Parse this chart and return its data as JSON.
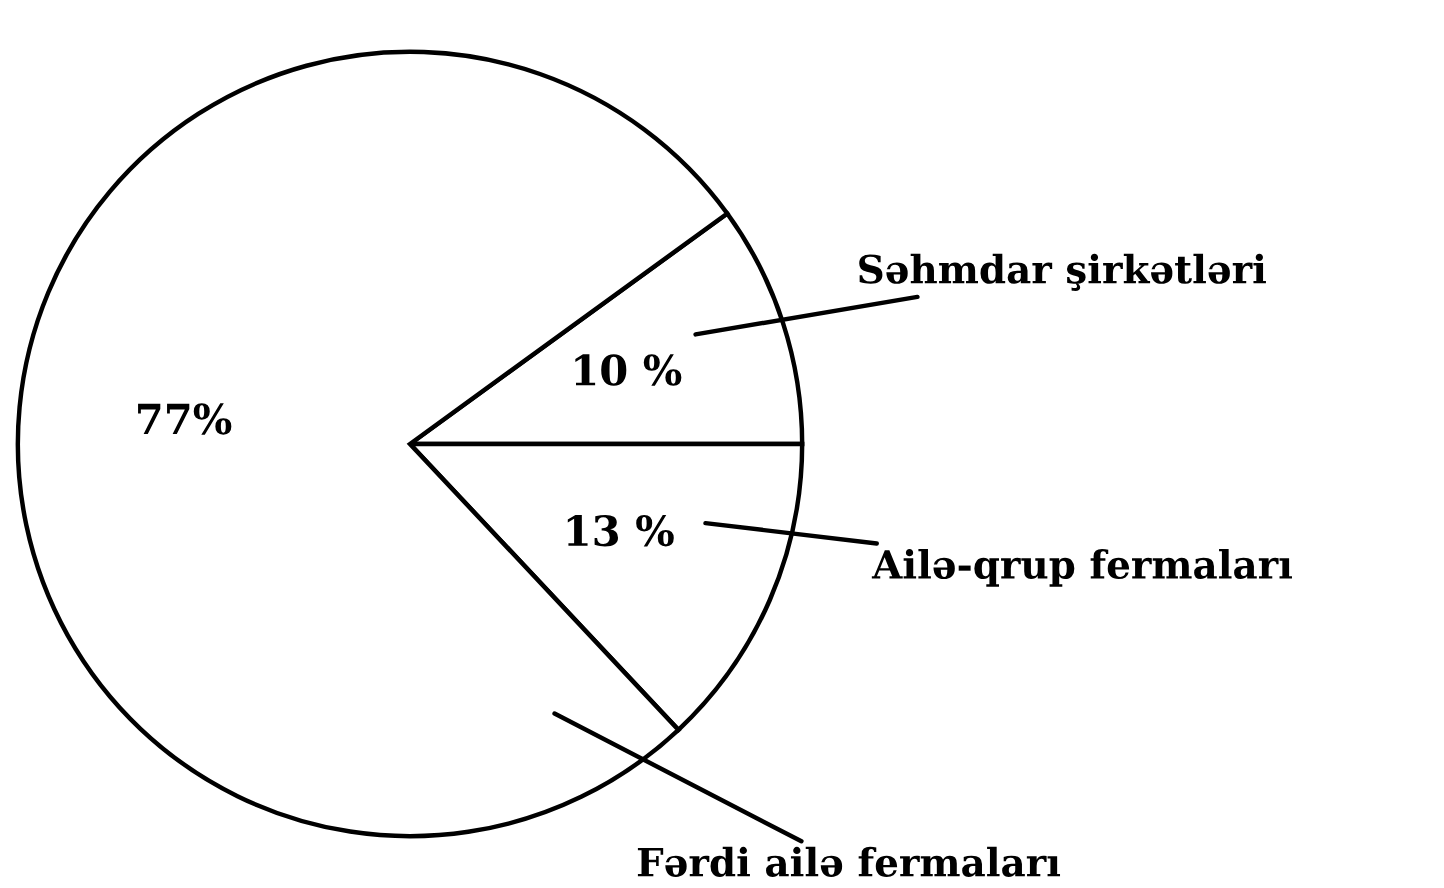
{
  "chart_data": {
    "type": "pie",
    "categories": [
      "Səhmdar şirkətləri",
      "Ailə-qrup fermaları",
      "Fərdi ailə fermaları"
    ],
    "values": [
      10,
      13,
      77
    ],
    "value_labels": [
      "10 %",
      "13 %",
      "77%"
    ],
    "colors": [
      "#ffffff",
      "#ffffff",
      "#ffffff"
    ],
    "legend": false
  }
}
